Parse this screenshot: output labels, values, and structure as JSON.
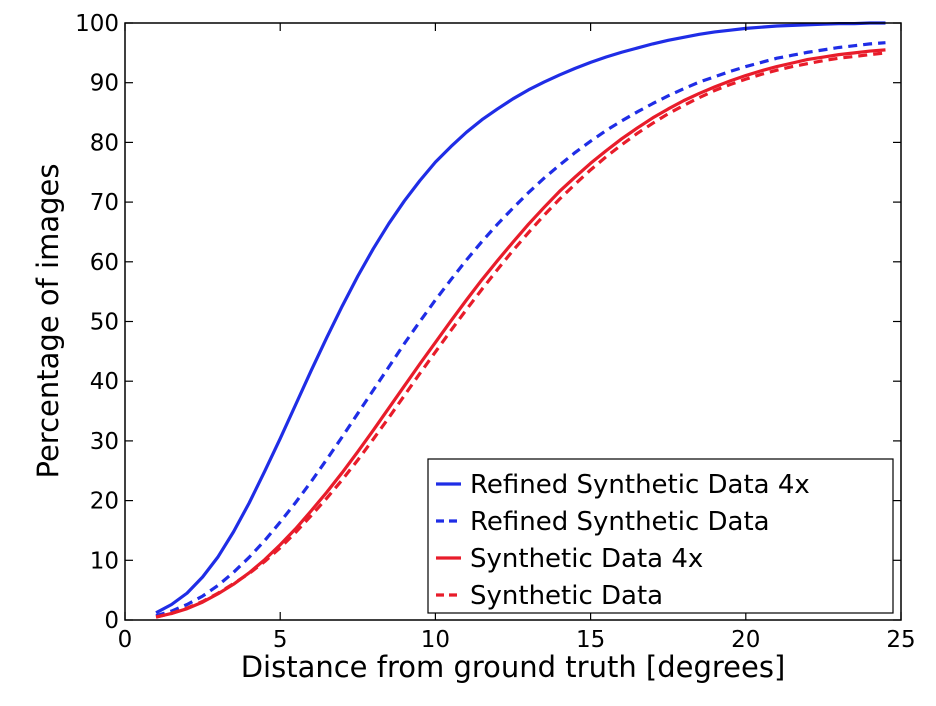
{
  "chart_data": {
    "type": "line",
    "title": "",
    "xlabel": "Distance from ground truth [degrees]",
    "ylabel": "Percentage of images",
    "xlim": [
      0,
      25
    ],
    "ylim": [
      0,
      100
    ],
    "xticks": [
      "0",
      "5",
      "10",
      "15",
      "20",
      "25"
    ],
    "yticks": [
      "0",
      "10",
      "20",
      "30",
      "40",
      "50",
      "60",
      "70",
      "80",
      "90",
      "100"
    ],
    "grid": false,
    "legend_position": "bottom-right",
    "x": [
      1,
      1.5,
      2,
      2.5,
      3,
      3.5,
      4,
      4.5,
      5,
      5.5,
      6,
      6.5,
      7,
      7.5,
      8,
      8.5,
      9,
      9.5,
      10,
      10.5,
      11,
      11.5,
      12,
      12.5,
      13,
      13.5,
      14,
      14.5,
      15,
      15.5,
      16,
      16.5,
      17,
      17.5,
      18,
      18.5,
      19,
      19.5,
      20,
      20.5,
      21,
      21.5,
      22,
      22.5,
      23,
      23.5,
      24,
      24.5
    ],
    "series": [
      {
        "name": "Refined Synthetic Data 4x",
        "color": "#1f2de6",
        "dash": "solid",
        "values": [
          1.2,
          2.6,
          4.5,
          7.2,
          10.6,
          14.8,
          19.6,
          24.9,
          30.4,
          36.1,
          41.8,
          47.3,
          52.6,
          57.6,
          62.2,
          66.4,
          70.2,
          73.6,
          76.7,
          79.3,
          81.7,
          83.8,
          85.6,
          87.3,
          88.8,
          90.1,
          91.3,
          92.4,
          93.4,
          94.3,
          95.1,
          95.8,
          96.5,
          97.1,
          97.6,
          98.1,
          98.5,
          98.8,
          99.1,
          99.3,
          99.5,
          99.6,
          99.7,
          99.8,
          99.9,
          99.9,
          100,
          100
        ]
      },
      {
        "name": "Refined Synthetic Data",
        "color": "#1f2de6",
        "dash": "dashed",
        "values": [
          0.7,
          1.5,
          2.6,
          4.0,
          5.8,
          8.0,
          10.5,
          13.3,
          16.4,
          19.7,
          23.2,
          26.9,
          30.7,
          34.6,
          38.5,
          42.4,
          46.3,
          50.0,
          53.6,
          57.0,
          60.3,
          63.4,
          66.3,
          69.0,
          71.6,
          74.0,
          76.2,
          78.3,
          80.2,
          82.0,
          83.6,
          85.1,
          86.5,
          87.8,
          89.0,
          90.1,
          91.0,
          91.9,
          92.7,
          93.4,
          94.1,
          94.6,
          95.1,
          95.5,
          95.9,
          96.2,
          96.5,
          96.7
        ]
      },
      {
        "name": "Synthetic Data 4x",
        "color": "#e81c2a",
        "dash": "solid",
        "values": [
          0.5,
          1.1,
          1.9,
          3.0,
          4.4,
          6.0,
          7.9,
          10.1,
          12.6,
          15.3,
          18.3,
          21.4,
          24.7,
          28.2,
          31.8,
          35.5,
          39.2,
          42.9,
          46.5,
          50.1,
          53.6,
          57.0,
          60.2,
          63.3,
          66.3,
          69.1,
          71.8,
          74.2,
          76.5,
          78.6,
          80.6,
          82.4,
          84.1,
          85.6,
          87.0,
          88.2,
          89.3,
          90.3,
          91.2,
          92.0,
          92.7,
          93.3,
          93.9,
          94.3,
          94.7,
          95.0,
          95.3,
          95.5
        ]
      },
      {
        "name": "Synthetic Data",
        "color": "#e81c2a",
        "dash": "dashed",
        "values": [
          0.5,
          1.1,
          2.0,
          3.1,
          4.5,
          6.1,
          7.8,
          9.8,
          12.1,
          14.7,
          17.5,
          20.4,
          23.5,
          26.8,
          30.3,
          33.9,
          37.6,
          41.3,
          44.9,
          48.5,
          52.0,
          55.4,
          58.7,
          61.9,
          64.9,
          67.8,
          70.5,
          73.0,
          75.4,
          77.6,
          79.6,
          81.5,
          83.2,
          84.8,
          86.2,
          87.5,
          88.7,
          89.7,
          90.6,
          91.4,
          92.1,
          92.7,
          93.2,
          93.7,
          94.1,
          94.4,
          94.7,
          95.0
        ]
      }
    ]
  }
}
